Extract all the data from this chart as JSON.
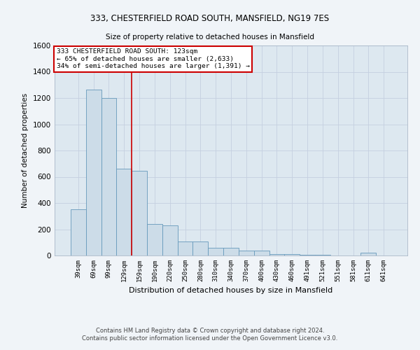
{
  "title_line1": "333, CHESTERFIELD ROAD SOUTH, MANSFIELD, NG19 7ES",
  "title_line2": "Size of property relative to detached houses in Mansfield",
  "xlabel": "Distribution of detached houses by size in Mansfield",
  "ylabel": "Number of detached properties",
  "categories": [
    "39sqm",
    "69sqm",
    "99sqm",
    "129sqm",
    "159sqm",
    "190sqm",
    "220sqm",
    "250sqm",
    "280sqm",
    "310sqm",
    "340sqm",
    "370sqm",
    "400sqm",
    "430sqm",
    "460sqm",
    "491sqm",
    "521sqm",
    "551sqm",
    "581sqm",
    "611sqm",
    "641sqm"
  ],
  "values": [
    350,
    1265,
    1200,
    660,
    645,
    240,
    230,
    108,
    108,
    60,
    60,
    40,
    40,
    12,
    12,
    4,
    4,
    0,
    0,
    20,
    0
  ],
  "bar_color": "#ccdce8",
  "bar_edge_color": "#6699bb",
  "property_line_x": 3.5,
  "annotation_text_line1": "333 CHESTERFIELD ROAD SOUTH: 123sqm",
  "annotation_text_line2": "← 65% of detached houses are smaller (2,633)",
  "annotation_text_line3": "34% of semi-detached houses are larger (1,391) →",
  "annotation_box_color": "#ffffff",
  "annotation_border_color": "#cc0000",
  "ylim": [
    0,
    1600
  ],
  "yticks": [
    0,
    200,
    400,
    600,
    800,
    1000,
    1200,
    1400,
    1600
  ],
  "grid_color": "#c5cfe0",
  "background_color": "#dde8f0",
  "fig_background": "#f0f4f8",
  "footer_line1": "Contains HM Land Registry data © Crown copyright and database right 2024.",
  "footer_line2": "Contains public sector information licensed under the Open Government Licence v3.0."
}
